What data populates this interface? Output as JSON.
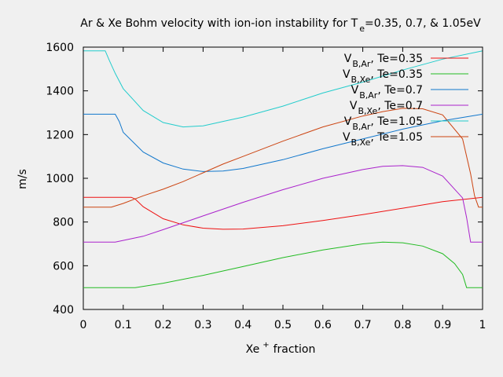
{
  "chart_data": {
    "type": "line",
    "title_main": "Ar & Xe Bohm velocity with ion-ion instability for T",
    "title_sub": "e",
    "title_tail": "=0.35, 0.7, & 1.05eV",
    "xlabel_main": "Xe",
    "xlabel_sup": "+",
    "xlabel_tail": "fraction",
    "ylabel": "m/s",
    "xlim": [
      0,
      1
    ],
    "ylim": [
      400,
      1600
    ],
    "xticks": [
      "0",
      "0.1",
      "0.2",
      "0.3",
      "0.4",
      "0.5",
      "0.6",
      "0.7",
      "0.8",
      "0.9",
      "1"
    ],
    "yticks": [
      "400",
      "600",
      "800",
      "1000",
      "1200",
      "1400",
      "1600"
    ],
    "legend_position": "top-right",
    "series": [
      {
        "name_main": "V",
        "name_sub": "B,Ar",
        "name_tail": ", Te=0.35",
        "color": "#ee1111",
        "x": [
          0,
          0.12,
          0.13,
          0.15,
          0.2,
          0.25,
          0.3,
          0.35,
          0.4,
          0.5,
          0.6,
          0.7,
          0.8,
          0.9,
          1.0
        ],
        "y": [
          913,
          913,
          905,
          870,
          815,
          787,
          772,
          767,
          768,
          783,
          807,
          834,
          863,
          893,
          913
        ]
      },
      {
        "name_main": "V",
        "name_sub": "B,Xe",
        "name_tail": ", Te=0.35",
        "color": "#22bb22",
        "x": [
          0,
          0.13,
          0.2,
          0.3,
          0.4,
          0.5,
          0.6,
          0.7,
          0.75,
          0.8,
          0.85,
          0.9,
          0.93,
          0.95,
          0.96,
          1.0
        ],
        "y": [
          500,
          500,
          520,
          556,
          596,
          637,
          672,
          700,
          708,
          705,
          690,
          655,
          610,
          560,
          500,
          500
        ]
      },
      {
        "name_main": "V",
        "name_sub": "B,Ar",
        "name_tail": ", Te=0.7",
        "color": "#1177cc",
        "x": [
          0,
          0.08,
          0.09,
          0.1,
          0.15,
          0.2,
          0.25,
          0.3,
          0.35,
          0.4,
          0.5,
          0.6,
          0.7,
          0.8,
          0.9,
          1.0
        ],
        "y": [
          1293,
          1293,
          1260,
          1210,
          1120,
          1070,
          1042,
          1031,
          1033,
          1045,
          1085,
          1135,
          1180,
          1225,
          1263,
          1293
        ]
      },
      {
        "name_main": "V",
        "name_sub": "B,Xe",
        "name_tail": ", Te=0.7",
        "color": "#aa22cc",
        "x": [
          0,
          0.08,
          0.15,
          0.2,
          0.3,
          0.4,
          0.5,
          0.6,
          0.7,
          0.75,
          0.8,
          0.85,
          0.9,
          0.95,
          0.96,
          0.97,
          1.0
        ],
        "y": [
          708,
          708,
          735,
          765,
          828,
          890,
          948,
          1000,
          1040,
          1055,
          1058,
          1050,
          1010,
          910,
          820,
          708,
          708
        ]
      },
      {
        "name_main": "V",
        "name_sub": "B,Ar",
        "name_tail": ", Te=1.05",
        "color": "#22cccc",
        "x": [
          0,
          0.055,
          0.065,
          0.08,
          0.1,
          0.15,
          0.2,
          0.25,
          0.3,
          0.35,
          0.4,
          0.5,
          0.6,
          0.7,
          0.8,
          0.9,
          1.0
        ],
        "y": [
          1583,
          1583,
          1540,
          1480,
          1410,
          1310,
          1255,
          1235,
          1240,
          1260,
          1280,
          1330,
          1390,
          1440,
          1495,
          1545,
          1583
        ]
      },
      {
        "name_main": "V",
        "name_sub": "B,Xe",
        "name_tail": ", Te=1.05",
        "color": "#cc4411",
        "x": [
          0,
          0.07,
          0.1,
          0.15,
          0.2,
          0.25,
          0.3,
          0.35,
          0.4,
          0.5,
          0.6,
          0.7,
          0.75,
          0.8,
          0.85,
          0.9,
          0.95,
          0.97,
          0.98,
          0.99,
          1.0
        ],
        "y": [
          868,
          868,
          885,
          920,
          950,
          985,
          1025,
          1065,
          1100,
          1170,
          1235,
          1285,
          1305,
          1320,
          1318,
          1290,
          1180,
          1020,
          920,
          868,
          868
        ]
      }
    ]
  }
}
